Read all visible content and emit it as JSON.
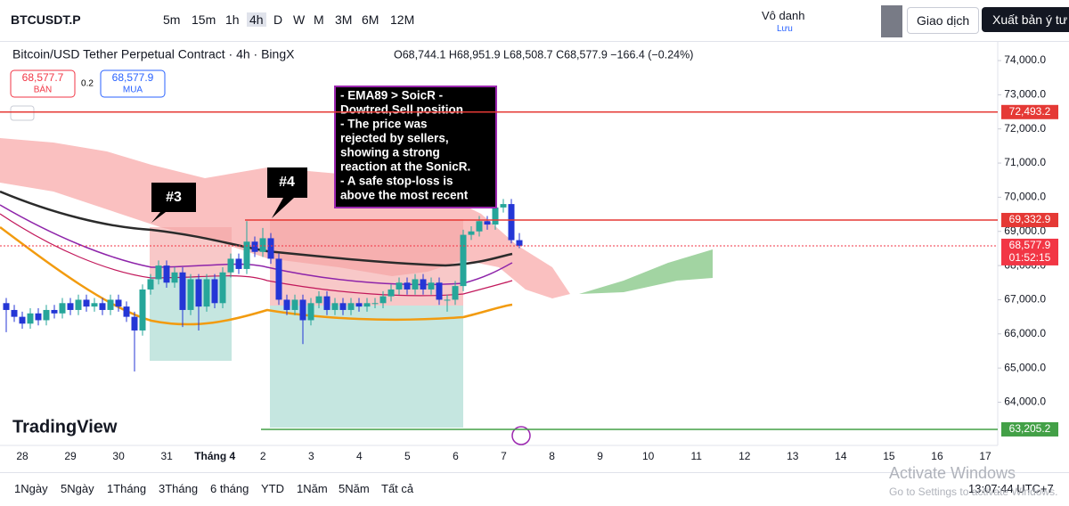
{
  "toolbar": {
    "symbol": "BTCUSDT.P",
    "intervals": [
      "5m",
      "15m",
      "1h",
      "4h",
      "D",
      "W",
      "M",
      "3M",
      "6M",
      "12M"
    ],
    "account": "Vô danh",
    "save": "Lưu",
    "trade": "Giao dịch",
    "publish": "Xuất bản ý tư"
  },
  "legend": {
    "title": "Bitcoin/USD Tether Perpetual Contract · 4h · BingX",
    "ohlc": "O68,744.1 H68,951.9 L68,508.7 C68,577.9 −166.4 (−0.24%)"
  },
  "order": {
    "sell_price": "68,577.7",
    "sell": "BÁN",
    "spread": "0.2",
    "buy_price": "68,577.9",
    "buy": "MUA"
  },
  "chart": {
    "type": "candlestick",
    "ylim": [
      62735,
      74548
    ],
    "yticks": [
      {
        "value": 64000,
        "label": "64,000.0"
      },
      {
        "value": 65000,
        "label": "65,000.0"
      },
      {
        "value": 66000,
        "label": "66,000.0"
      },
      {
        "value": 67000,
        "label": "67,000.0"
      },
      {
        "value": 68000,
        "label": "68,000.0"
      },
      {
        "value": 69000,
        "label": "69,000.0"
      },
      {
        "value": 70000,
        "label": "70,000.0"
      },
      {
        "value": 71000,
        "label": "71,000.0"
      },
      {
        "value": 72000,
        "label": "72,000.0"
      },
      {
        "value": 73000,
        "label": "73,000.0"
      },
      {
        "value": 74000,
        "label": "74,000.0"
      }
    ],
    "categories": [
      "28",
      "29",
      "30",
      "31",
      "Tháng 4",
      "2",
      "3",
      "4",
      "5",
      "6",
      "7",
      "8",
      "9",
      "10",
      "11",
      "12",
      "13",
      "14",
      "15",
      "16",
      "17"
    ],
    "up_color": "#26a69a",
    "down_color": "#2436d6",
    "candles": [
      [
        66900,
        67050,
        66050,
        66700
      ],
      [
        66700,
        66850,
        66350,
        66500
      ],
      [
        66500,
        66650,
        66150,
        66300
      ],
      [
        66300,
        66750,
        66150,
        66600
      ],
      [
        66600,
        66750,
        66250,
        66400
      ],
      [
        66400,
        66850,
        66250,
        66700
      ],
      [
        66700,
        66850,
        66450,
        66600
      ],
      [
        66600,
        67050,
        66450,
        66900
      ],
      [
        66900,
        67050,
        66550,
        66700
      ],
      [
        66700,
        67150,
        66550,
        67000
      ],
      [
        67000,
        67150,
        66650,
        66800
      ],
      [
        66800,
        67050,
        66650,
        66900
      ],
      [
        66900,
        67050,
        66550,
        66700
      ],
      [
        66700,
        67150,
        66550,
        67000
      ],
      [
        67000,
        67150,
        66650,
        66800
      ],
      [
        66800,
        66950,
        66350,
        66500
      ],
      [
        66500,
        66650,
        64900,
        66100
      ],
      [
        66100,
        67450,
        65950,
        67300
      ],
      [
        67300,
        67750,
        67150,
        67600
      ],
      [
        67600,
        68150,
        67450,
        68000
      ],
      [
        68000,
        68150,
        67350,
        67500
      ],
      [
        67500,
        67950,
        67350,
        67800
      ],
      [
        67800,
        67950,
        66200,
        66700
      ],
      [
        66700,
        67750,
        66550,
        67600
      ],
      [
        67600,
        67750,
        66100,
        66800
      ],
      [
        66800,
        67750,
        66650,
        67600
      ],
      [
        67600,
        67750,
        66750,
        66900
      ],
      [
        66900,
        67950,
        66750,
        67800
      ],
      [
        67800,
        68350,
        67650,
        68200
      ],
      [
        68200,
        68350,
        67750,
        67900
      ],
      [
        67900,
        69300,
        67750,
        68700
      ],
      [
        68700,
        68850,
        68250,
        68400
      ],
      [
        68400,
        69100,
        68250,
        68800
      ],
      [
        68800,
        68950,
        68050,
        68200
      ],
      [
        68200,
        68350,
        66850,
        67000
      ],
      [
        67000,
        67150,
        66550,
        66700
      ],
      [
        66700,
        67150,
        66550,
        67000
      ],
      [
        67000,
        67150,
        65700,
        66400
      ],
      [
        66400,
        67050,
        66250,
        66900
      ],
      [
        66900,
        67250,
        66750,
        67100
      ],
      [
        67100,
        67250,
        66550,
        66700
      ],
      [
        66700,
        67050,
        66550,
        66900
      ],
      [
        66900,
        67050,
        66550,
        66700
      ],
      [
        66700,
        67050,
        66550,
        66900
      ],
      [
        66900,
        67050,
        66650,
        66800
      ],
      [
        66800,
        67050,
        66650,
        66900
      ],
      [
        66900,
        67050,
        66750,
        66900
      ],
      [
        66900,
        67250,
        66750,
        67100
      ],
      [
        67100,
        67450,
        66950,
        67300
      ],
      [
        67300,
        67650,
        67150,
        67500
      ],
      [
        67500,
        67650,
        67150,
        67300
      ],
      [
        67300,
        67750,
        67150,
        67600
      ],
      [
        67600,
        67750,
        67150,
        67300
      ],
      [
        67300,
        67650,
        67150,
        67500
      ],
      [
        67500,
        67650,
        66850,
        67000
      ],
      [
        67000,
        67150,
        66650,
        67000
      ],
      [
        67000,
        67550,
        66850,
        67400
      ],
      [
        67400,
        69050,
        67250,
        68900
      ],
      [
        68900,
        69150,
        68750,
        69000
      ],
      [
        69000,
        69450,
        68850,
        69300
      ],
      [
        69300,
        69450,
        69050,
        69200
      ],
      [
        69200,
        69850,
        69050,
        69700
      ],
      [
        69700,
        69950,
        69550,
        69800
      ],
      [
        69800,
        69950,
        68650,
        68744.1
      ],
      [
        68744.1,
        68951.9,
        68508.7,
        68577.9
      ]
    ],
    "price_lines": [
      {
        "value": 72493.2,
        "label": "72,493.2",
        "color": "#e53935"
      },
      {
        "value": 69332.9,
        "label": "69,332.9",
        "color": "#e53935"
      },
      {
        "value": 68577.9,
        "label": "68,577.9",
        "color": "#f23645"
      },
      {
        "value": 63205.2,
        "label": "63,205.2",
        "color": "#43a047"
      }
    ],
    "countdown": "01:52:15",
    "callouts": [
      "#3",
      "#4"
    ],
    "note": [
      "- EMA89 > SoicR -",
      "Dowtred,Sell position",
      "- The price was",
      "rejected by sellers,",
      "showing a strong",
      "reaction at the SonicR.",
      "- A safe stop-loss is",
      "above the most recent"
    ],
    "logo": "TradingView"
  },
  "ranges": [
    "1Ngày",
    "5Ngày",
    "1Tháng",
    "3Tháng",
    "6 tháng",
    "YTD",
    "1Năm",
    "5Năm",
    "Tất cả"
  ],
  "clock": "13:07:44 UTC+7",
  "watermark": [
    "Activate Windows",
    "Go to Settings to activate Windows."
  ]
}
